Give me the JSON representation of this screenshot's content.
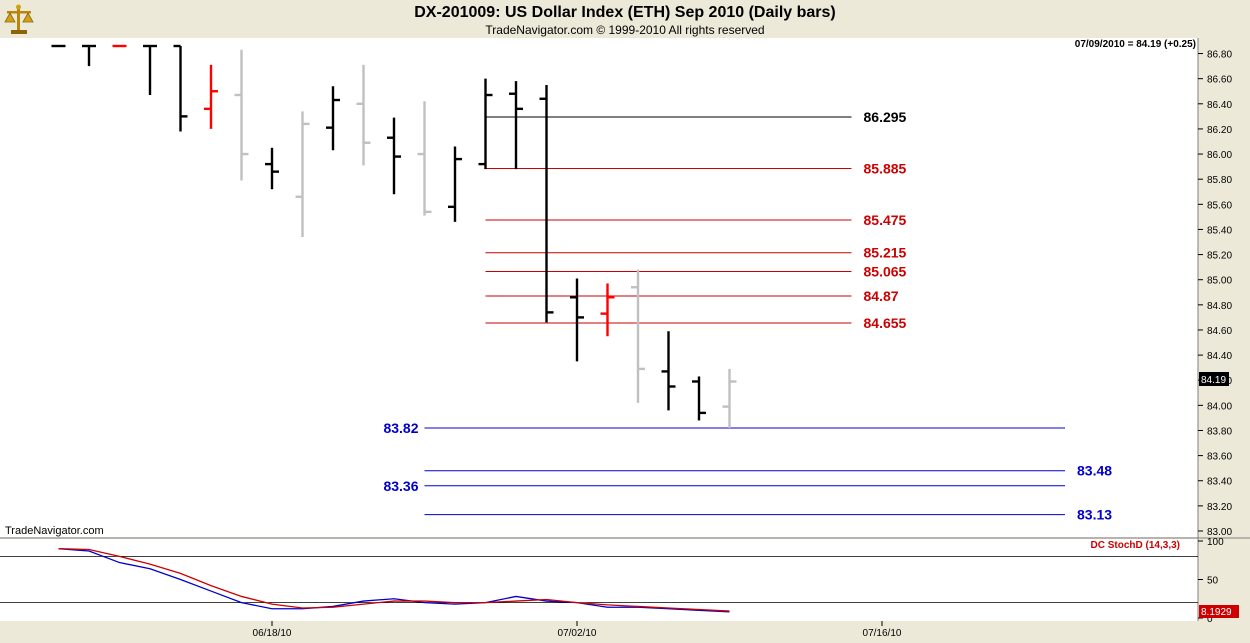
{
  "header": {
    "title": "DX-201009:  US Dollar Index (ETH) Sep 2010  (Daily bars)",
    "subtitle": "TradeNavigator.com © 1999-2010 All rights reserved",
    "logo_icon": "scales-icon"
  },
  "price_panel": {
    "last_info": "07/09/2010 = 84.19 (+0.25)",
    "last_price_tag": "84.19",
    "watermark": "TradeNavigator.com"
  },
  "indicator_panel": {
    "label": "DC StochD (14,3,3)",
    "value_tag": "8.1929"
  },
  "colors": {
    "up_bar": "#000000",
    "down_bar": "#c0c0c0",
    "highlight_bar": "#ff0000",
    "resistance": "#cc0000",
    "support": "#0000cc",
    "stoch_k": "#0000cc",
    "stoch_d": "#cc0000"
  },
  "chart_data": [
    {
      "type": "ohlc",
      "title": "DX-201009:  US Dollar Index (ETH) Sep 2010  (Daily bars)",
      "ylim": [
        83.0,
        86.86
      ],
      "yticks": [
        83.0,
        83.2,
        83.4,
        83.6,
        83.8,
        84.0,
        84.2,
        84.4,
        84.6,
        84.8,
        85.0,
        85.2,
        85.4,
        85.6,
        85.8,
        86.0,
        86.2,
        86.4,
        86.6,
        86.8
      ],
      "ytick_labels": [
        "83.00",
        "83.20",
        "83.40",
        "83.60",
        "83.80",
        "84.00",
        "84.20",
        "84.40",
        "84.60",
        "84.80",
        "85.00",
        "85.20",
        "85.40",
        "85.60",
        "85.80",
        "86.00",
        "86.20",
        "86.40",
        "86.60",
        "86.80"
      ],
      "x_labels": [
        {
          "label": "06/18/10",
          "index": 8
        },
        {
          "label": "07/02/10",
          "index": 18
        },
        {
          "label": "07/16/10",
          "index": 28
        }
      ],
      "bars": [
        {
          "i": 1,
          "o": 86.86,
          "h": 86.86,
          "l": 86.86,
          "c": 86.86,
          "color": "up"
        },
        {
          "i": 2,
          "o": 86.86,
          "h": 86.86,
          "l": 86.7,
          "c": 86.86,
          "color": "up"
        },
        {
          "i": 3,
          "o": 86.86,
          "h": 86.86,
          "l": 86.86,
          "c": 86.86,
          "color": "highlight"
        },
        {
          "i": 4,
          "o": 86.86,
          "h": 86.86,
          "l": 86.47,
          "c": 86.86,
          "color": "up"
        },
        {
          "i": 5,
          "o": 86.86,
          "h": 86.86,
          "l": 86.18,
          "c": 86.3,
          "color": "up"
        },
        {
          "i": 6,
          "o": 86.36,
          "h": 86.71,
          "l": 86.2,
          "c": 86.5,
          "color": "highlight"
        },
        {
          "i": 7,
          "o": 86.47,
          "h": 86.83,
          "l": 85.79,
          "c": 86.0,
          "color": "down"
        },
        {
          "i": 8,
          "o": 85.92,
          "h": 86.05,
          "l": 85.72,
          "c": 85.86,
          "color": "up"
        },
        {
          "i": 9,
          "o": 85.66,
          "h": 86.34,
          "l": 85.34,
          "c": 86.24,
          "color": "down"
        },
        {
          "i": 10,
          "o": 86.21,
          "h": 86.54,
          "l": 86.03,
          "c": 86.43,
          "color": "up"
        },
        {
          "i": 11,
          "o": 86.4,
          "h": 86.71,
          "l": 85.91,
          "c": 86.09,
          "color": "down"
        },
        {
          "i": 12,
          "o": 86.13,
          "h": 86.29,
          "l": 85.68,
          "c": 85.98,
          "color": "up"
        },
        {
          "i": 13,
          "o": 86.0,
          "h": 86.42,
          "l": 85.51,
          "c": 85.54,
          "color": "down"
        },
        {
          "i": 14,
          "o": 85.58,
          "h": 86.06,
          "l": 85.46,
          "c": 85.96,
          "color": "up"
        },
        {
          "i": 15,
          "o": 85.92,
          "h": 86.6,
          "l": 85.88,
          "c": 86.47,
          "color": "up"
        },
        {
          "i": 16,
          "o": 86.48,
          "h": 86.58,
          "l": 85.88,
          "c": 86.36,
          "color": "up"
        },
        {
          "i": 17,
          "o": 86.44,
          "h": 86.55,
          "l": 84.66,
          "c": 84.74,
          "color": "up"
        },
        {
          "i": 18,
          "o": 84.86,
          "h": 85.01,
          "l": 84.35,
          "c": 84.7,
          "color": "up"
        },
        {
          "i": 19,
          "o": 84.73,
          "h": 84.97,
          "l": 84.55,
          "c": 84.86,
          "color": "highlight"
        },
        {
          "i": 20,
          "o": 84.94,
          "h": 85.08,
          "l": 84.02,
          "c": 84.29,
          "color": "down"
        },
        {
          "i": 21,
          "o": 84.27,
          "h": 84.59,
          "l": 83.96,
          "c": 84.15,
          "color": "up"
        },
        {
          "i": 22,
          "o": 84.19,
          "h": 84.23,
          "l": 83.88,
          "c": 83.94,
          "color": "up"
        },
        {
          "i": 23,
          "o": 83.99,
          "h": 84.29,
          "l": 83.82,
          "c": 84.19,
          "color": "down"
        }
      ],
      "levels": [
        {
          "value": 86.295,
          "label": "86.295",
          "kind": "neutral",
          "x_start": 15,
          "x_end": 27,
          "label_side": "right"
        },
        {
          "value": 85.885,
          "label": "85.885",
          "kind": "resistance",
          "x_start": 15,
          "x_end": 27,
          "label_side": "right"
        },
        {
          "value": 85.475,
          "label": "85.475",
          "kind": "resistance",
          "x_start": 15,
          "x_end": 27,
          "label_side": "right"
        },
        {
          "value": 85.215,
          "label": "85.215",
          "kind": "resistance",
          "x_start": 15,
          "x_end": 27,
          "label_side": "right"
        },
        {
          "value": 85.065,
          "label": "85.065",
          "kind": "resistance",
          "x_start": 15,
          "x_end": 27,
          "label_side": "right"
        },
        {
          "value": 84.87,
          "label": "84.87",
          "kind": "resistance",
          "x_start": 15,
          "x_end": 27,
          "label_side": "right"
        },
        {
          "value": 84.655,
          "label": "84.655",
          "kind": "resistance",
          "x_start": 15,
          "x_end": 27,
          "label_side": "right"
        },
        {
          "value": 83.82,
          "label": "83.82",
          "kind": "support",
          "x_start": 13,
          "x_end": 34,
          "label_side": "left"
        },
        {
          "value": 83.48,
          "label": "83.48",
          "kind": "support",
          "x_start": 13,
          "x_end": 34,
          "label_side": "right"
        },
        {
          "value": 83.36,
          "label": "83.36",
          "kind": "support",
          "x_start": 13,
          "x_end": 34,
          "label_side": "left"
        },
        {
          "value": 83.13,
          "label": "83.13",
          "kind": "support",
          "x_start": 13,
          "x_end": 34,
          "label_side": "right"
        }
      ]
    },
    {
      "type": "line",
      "title": "DC StochD (14,3,3)",
      "ylim": [
        0,
        100
      ],
      "yticks": [
        0,
        50,
        100
      ],
      "ytick_labels": [
        "0",
        "50",
        "100"
      ],
      "reference_lines": [
        20,
        80
      ],
      "x": [
        1,
        2,
        3,
        4,
        5,
        6,
        7,
        8,
        9,
        10,
        11,
        12,
        13,
        14,
        15,
        16,
        17,
        18,
        19,
        20,
        21,
        22,
        23
      ],
      "series": [
        {
          "key": "k",
          "values": [
            90,
            87,
            72,
            64,
            50,
            35,
            20,
            12,
            12,
            15,
            22,
            25,
            20,
            18,
            20,
            28,
            22,
            20,
            14,
            14,
            12,
            10,
            8
          ]
        },
        {
          "key": "d",
          "values": [
            90,
            89,
            80,
            70,
            58,
            42,
            28,
            18,
            13,
            14,
            18,
            22,
            22,
            20,
            20,
            22,
            24,
            20,
            17,
            15,
            13,
            11,
            9
          ]
        }
      ]
    }
  ]
}
